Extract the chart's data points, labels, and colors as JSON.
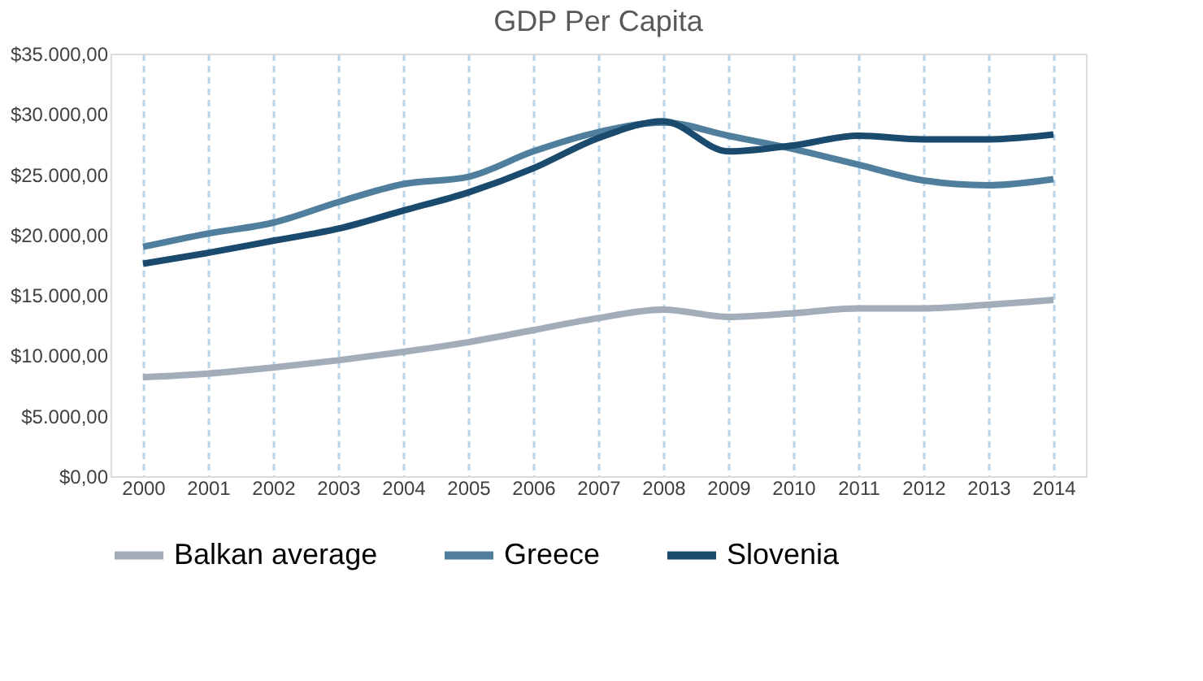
{
  "chart_data": {
    "type": "line",
    "title": "GDP Per Capita",
    "categories": [
      "2000",
      "2001",
      "2002",
      "2003",
      "2004",
      "2005",
      "2006",
      "2007",
      "2008",
      "2009",
      "2010",
      "2011",
      "2012",
      "2013",
      "2014"
    ],
    "series": [
      {
        "name": "Balkan average",
        "color": "#a3acb9",
        "values": [
          8200,
          8500,
          9000,
          9600,
          10300,
          11100,
          12100,
          13100,
          13800,
          13200,
          13500,
          13900,
          13900,
          14200,
          14600
        ]
      },
      {
        "name": "Greece",
        "color": "#4f7f9c",
        "values": [
          19000,
          20100,
          21000,
          22700,
          24200,
          24800,
          26900,
          28500,
          29300,
          28200,
          27100,
          25800,
          24500,
          24100,
          24600
        ]
      },
      {
        "name": "Slovenia",
        "color": "#1a4a6e",
        "values": [
          17600,
          18500,
          19500,
          20500,
          22000,
          23500,
          25500,
          28000,
          29400,
          26900,
          27400,
          28200,
          27900,
          27900,
          28300
        ]
      }
    ],
    "ylim": [
      0,
      35000
    ],
    "yticks": [
      {
        "value": 0,
        "label": "$0,00"
      },
      {
        "value": 5000,
        "label": "$5.000,00"
      },
      {
        "value": 10000,
        "label": "$10.000,00"
      },
      {
        "value": 15000,
        "label": "$15.000,00"
      },
      {
        "value": 20000,
        "label": "$20.000,00"
      },
      {
        "value": 25000,
        "label": "$25.000,00"
      },
      {
        "value": 30000,
        "label": "$30.000,00"
      },
      {
        "value": 35000,
        "label": "$35.000,00"
      }
    ],
    "grid": "x",
    "legend": "bottom",
    "marker": "none",
    "line_style": "solid"
  }
}
